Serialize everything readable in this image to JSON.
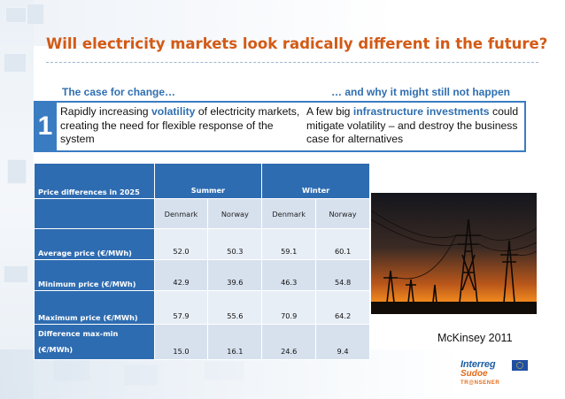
{
  "title": "Will electricity markets look radically different in the future?",
  "subheads": {
    "left": "The case for change…",
    "right": "… and why it might still not happen"
  },
  "case": {
    "number": "1",
    "left_before": "Rapidly increasing ",
    "left_highlight": "volatility",
    "left_after": " of electricity markets, creating the need for flexible response of the system",
    "right_before": "A few big ",
    "right_highlight": "infrastructure investments",
    "right_after": " could mitigate volatility – and destroy the business case for alternatives"
  },
  "table": {
    "corner_label": "Price differences in 2025",
    "seasons": [
      "Summer",
      "Winter"
    ],
    "countries": [
      "Denmark",
      "Norway",
      "Denmark",
      "Norway"
    ],
    "rows": [
      {
        "label": "Average price (€/MWh)",
        "values": [
          "52.0",
          "50.3",
          "59.1",
          "60.1"
        ]
      },
      {
        "label": "Minimum price (€/MWh)",
        "values": [
          "42.9",
          "39.6",
          "46.3",
          "54.8"
        ]
      },
      {
        "label": "Maximum price (€/MWh)",
        "values": [
          "57.9",
          "55.6",
          "70.9",
          "64.2"
        ]
      },
      {
        "label_line1": "Difference max-min",
        "label_line2": "(€/MWh)",
        "values": [
          "15.0",
          "16.1",
          "24.6",
          "9.4"
        ]
      }
    ]
  },
  "photo": {
    "icon": "power-lines-sunset-photo"
  },
  "caption": "McKinsey 2011",
  "logo": {
    "name": "Interreg",
    "sub": "Sudoe",
    "project": "TR@NSENER",
    "flag_icon": "eu-flag-icon"
  },
  "colors": {
    "title": "#d35a15",
    "accent_blue": "#2e6cb1",
    "subhead_blue": "#2f6fb0",
    "table_light": "#d7e1ee"
  }
}
